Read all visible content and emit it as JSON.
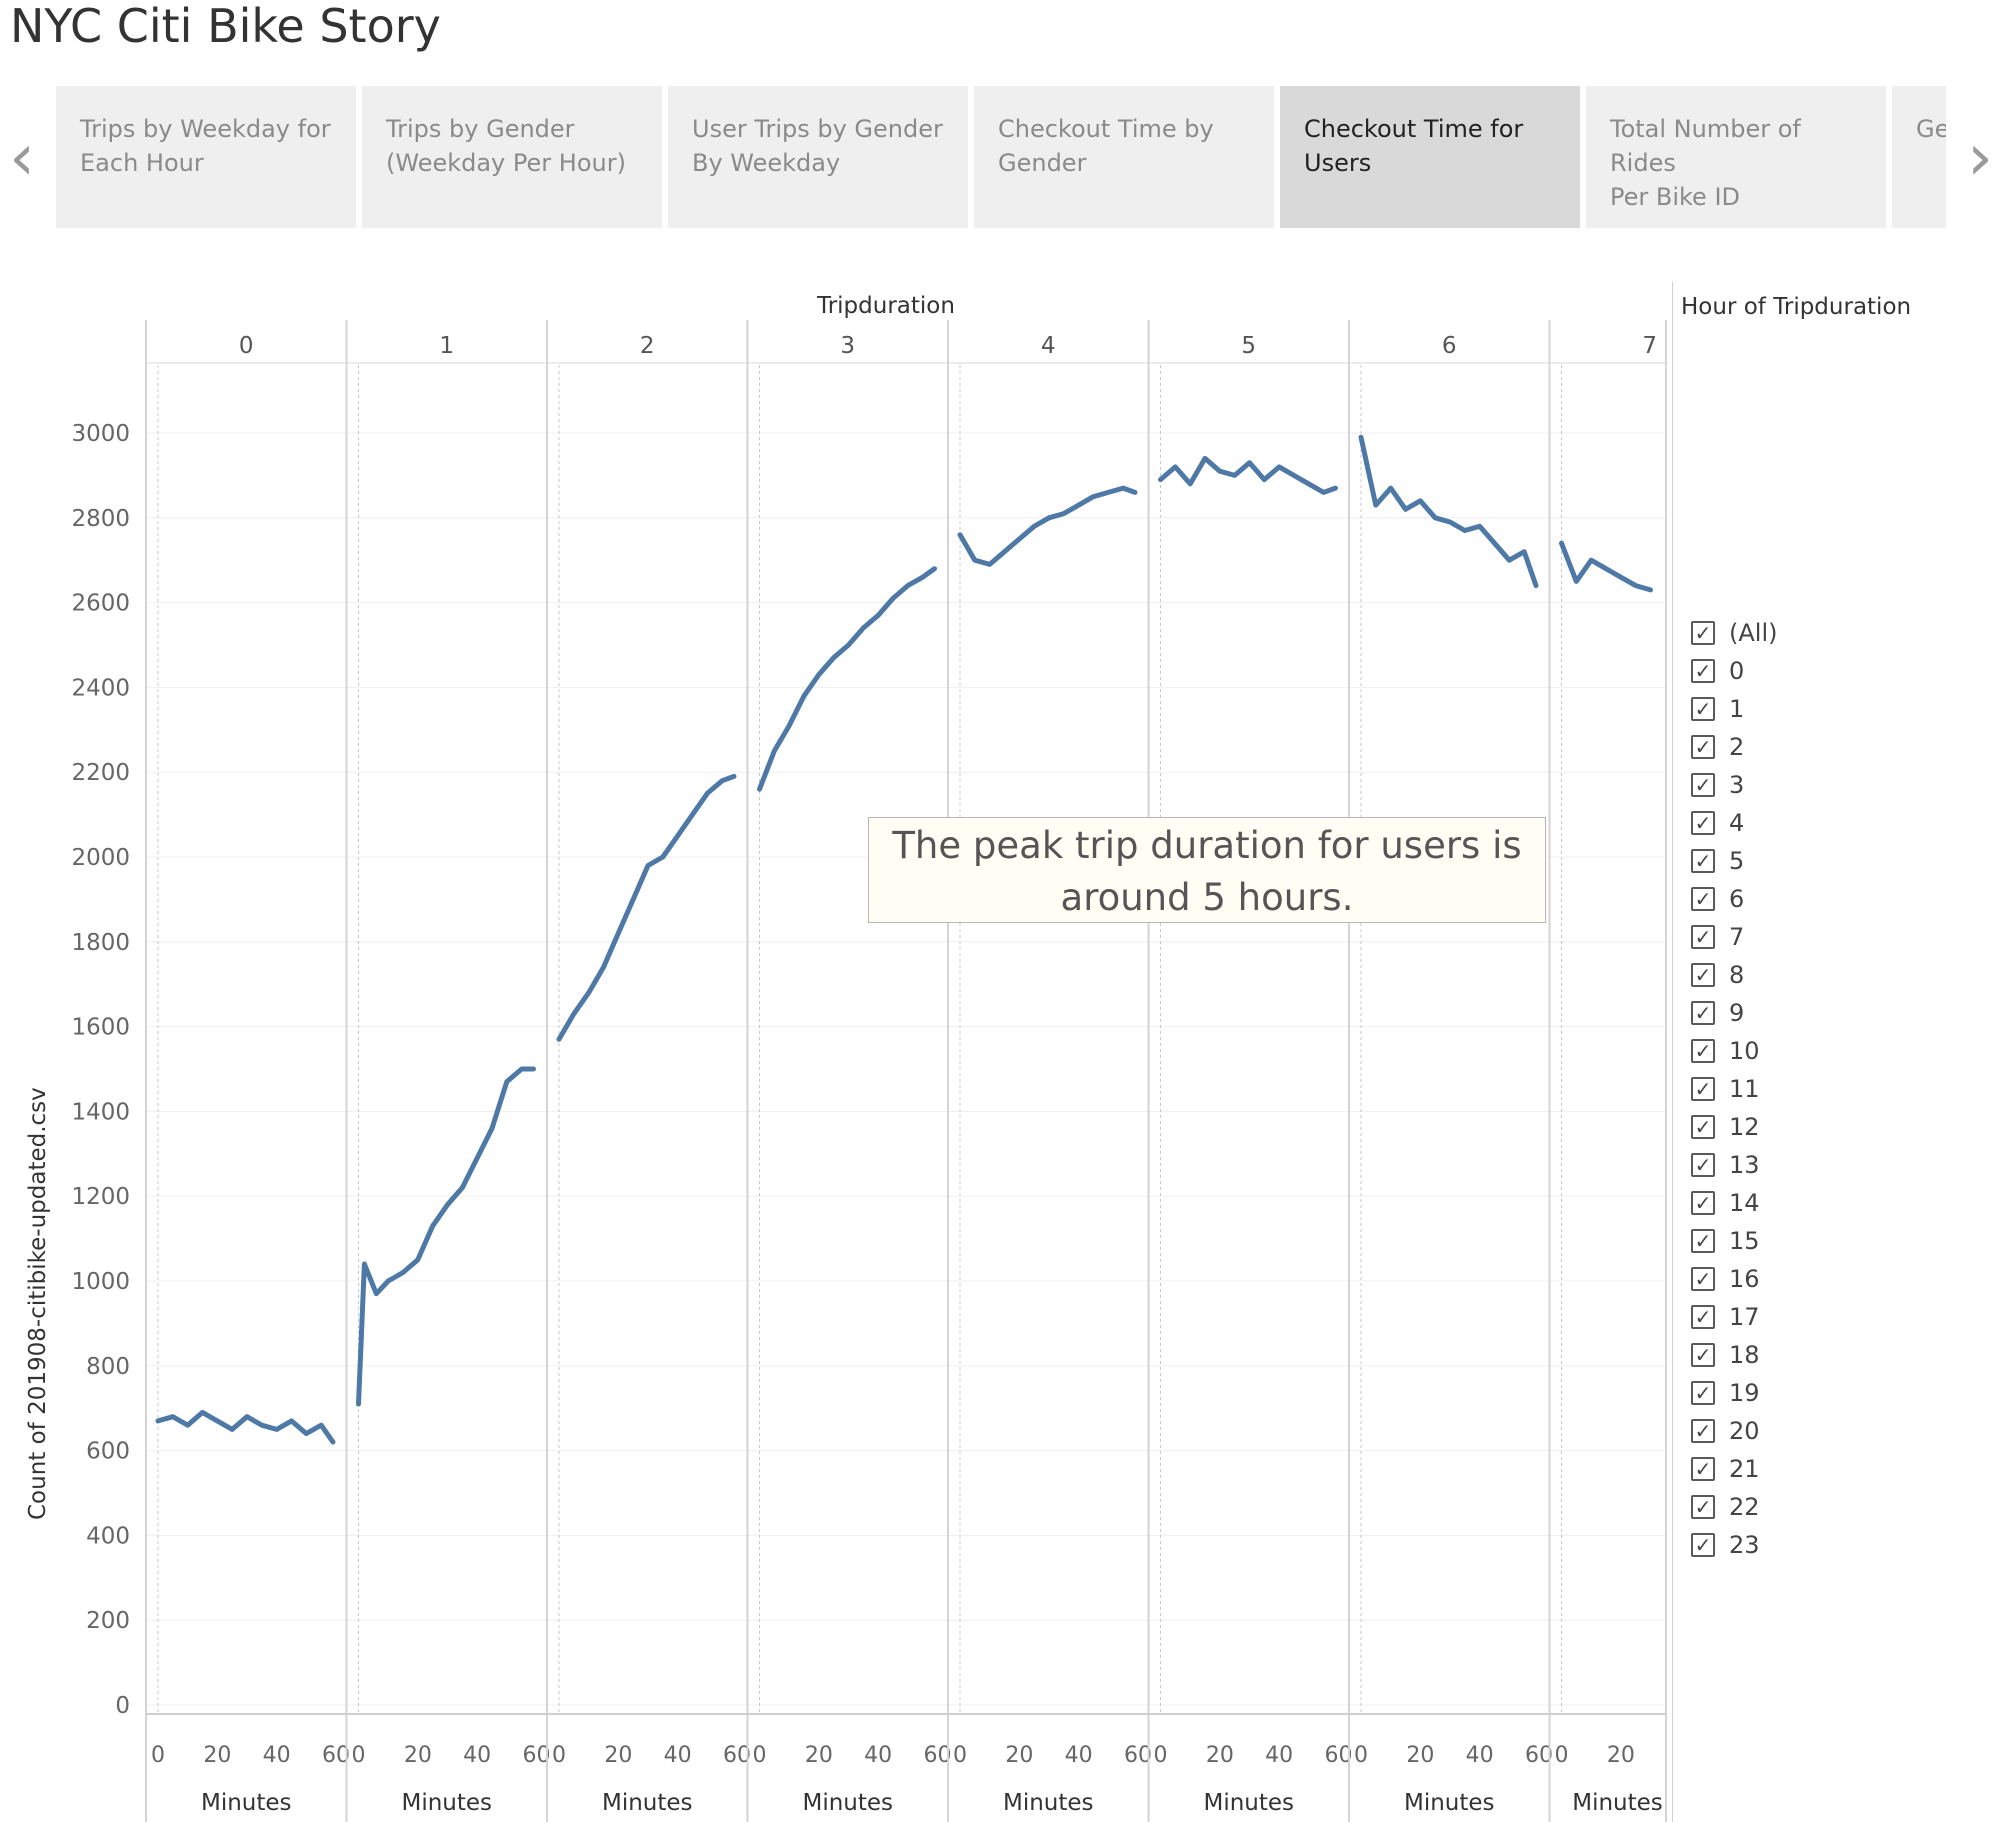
{
  "story_title": "NYC Citi Bike Story",
  "nav": {
    "prev_icon": "chevron-left-icon",
    "next_icon": "chevron-right-icon"
  },
  "tabs": [
    {
      "line1": "Trips by Weekday for",
      "line2": "Each Hour",
      "active": false
    },
    {
      "line1": "Trips by Gender",
      "line2": "(Weekday Per Hour)",
      "active": false
    },
    {
      "line1": "User Trips by Gender",
      "line2": "By Weekday",
      "active": false
    },
    {
      "line1": "Checkout Time by",
      "line2": "Gender",
      "active": false
    },
    {
      "line1": "Checkout Time for",
      "line2": "Users",
      "active": true
    },
    {
      "line1": "Total Number of Rides",
      "line2": "Per Bike ID",
      "active": false
    },
    {
      "line1": "Ge",
      "line2": "",
      "active": false
    }
  ],
  "annotation": {
    "line1": "The peak trip duration for users is",
    "line2": "around 5 hours."
  },
  "legend": {
    "title": "Hour of Tripduration",
    "items": [
      "(All)",
      "0",
      "1",
      "2",
      "3",
      "4",
      "5",
      "6",
      "7",
      "8",
      "9",
      "10",
      "11",
      "12",
      "13",
      "14",
      "15",
      "16",
      "17",
      "18",
      "19",
      "20",
      "21",
      "22",
      "23"
    ]
  },
  "chart_data": {
    "type": "line",
    "column_header": "Tripduration",
    "panels": [
      "0",
      "1",
      "2",
      "3",
      "4",
      "5",
      "6",
      "7"
    ],
    "ylabel": "Count of 201908-citibike-updated.csv",
    "xlabel": "Minutes",
    "x_ticks": [
      0,
      20,
      40,
      60
    ],
    "x_range": [
      0,
      60
    ],
    "y_ticks": [
      0,
      200,
      400,
      600,
      800,
      1000,
      1200,
      1400,
      1600,
      1800,
      2000,
      2200,
      2400,
      2600,
      2800,
      3000
    ],
    "ylim": [
      0,
      3000
    ],
    "color": "#4e79a7",
    "series": [
      {
        "panel": "0",
        "points": [
          [
            0,
            670
          ],
          [
            5,
            680
          ],
          [
            10,
            660
          ],
          [
            15,
            690
          ],
          [
            20,
            670
          ],
          [
            25,
            650
          ],
          [
            30,
            680
          ],
          [
            35,
            660
          ],
          [
            40,
            650
          ],
          [
            45,
            670
          ],
          [
            50,
            640
          ],
          [
            55,
            660
          ],
          [
            59,
            620
          ]
        ]
      },
      {
        "panel": "1",
        "points": [
          [
            0,
            710
          ],
          [
            2,
            1040
          ],
          [
            6,
            970
          ],
          [
            10,
            1000
          ],
          [
            15,
            1020
          ],
          [
            20,
            1050
          ],
          [
            25,
            1130
          ],
          [
            30,
            1180
          ],
          [
            35,
            1220
          ],
          [
            40,
            1290
          ],
          [
            45,
            1360
          ],
          [
            50,
            1470
          ],
          [
            55,
            1500
          ],
          [
            59,
            1500
          ]
        ]
      },
      {
        "panel": "2",
        "points": [
          [
            0,
            1570
          ],
          [
            5,
            1630
          ],
          [
            10,
            1680
          ],
          [
            15,
            1740
          ],
          [
            20,
            1820
          ],
          [
            25,
            1900
          ],
          [
            30,
            1980
          ],
          [
            35,
            2000
          ],
          [
            40,
            2050
          ],
          [
            45,
            2100
          ],
          [
            50,
            2150
          ],
          [
            55,
            2180
          ],
          [
            59,
            2190
          ]
        ]
      },
      {
        "panel": "3",
        "points": [
          [
            0,
            2160
          ],
          [
            5,
            2250
          ],
          [
            10,
            2310
          ],
          [
            15,
            2380
          ],
          [
            20,
            2430
          ],
          [
            25,
            2470
          ],
          [
            30,
            2500
          ],
          [
            35,
            2540
          ],
          [
            40,
            2570
          ],
          [
            45,
            2610
          ],
          [
            50,
            2640
          ],
          [
            55,
            2660
          ],
          [
            59,
            2680
          ]
        ]
      },
      {
        "panel": "4",
        "points": [
          [
            0,
            2760
          ],
          [
            5,
            2700
          ],
          [
            10,
            2690
          ],
          [
            15,
            2720
          ],
          [
            20,
            2750
          ],
          [
            25,
            2780
          ],
          [
            30,
            2800
          ],
          [
            35,
            2810
          ],
          [
            40,
            2830
          ],
          [
            45,
            2850
          ],
          [
            50,
            2860
          ],
          [
            55,
            2870
          ],
          [
            59,
            2860
          ]
        ]
      },
      {
        "panel": "5",
        "points": [
          [
            0,
            2890
          ],
          [
            5,
            2920
          ],
          [
            10,
            2880
          ],
          [
            15,
            2940
          ],
          [
            20,
            2910
          ],
          [
            25,
            2900
          ],
          [
            30,
            2930
          ],
          [
            35,
            2890
          ],
          [
            40,
            2920
          ],
          [
            45,
            2900
          ],
          [
            50,
            2880
          ],
          [
            55,
            2860
          ],
          [
            59,
            2870
          ]
        ]
      },
      {
        "panel": "6",
        "points": [
          [
            0,
            2990
          ],
          [
            5,
            2830
          ],
          [
            10,
            2870
          ],
          [
            15,
            2820
          ],
          [
            20,
            2840
          ],
          [
            25,
            2800
          ],
          [
            30,
            2790
          ],
          [
            35,
            2770
          ],
          [
            40,
            2780
          ],
          [
            45,
            2740
          ],
          [
            50,
            2700
          ],
          [
            55,
            2720
          ],
          [
            59,
            2640
          ]
        ]
      },
      {
        "panel": "7",
        "points": [
          [
            0,
            2740
          ],
          [
            5,
            2650
          ],
          [
            10,
            2700
          ],
          [
            15,
            2680
          ],
          [
            20,
            2660
          ],
          [
            25,
            2640
          ],
          [
            30,
            2630
          ]
        ]
      }
    ]
  }
}
